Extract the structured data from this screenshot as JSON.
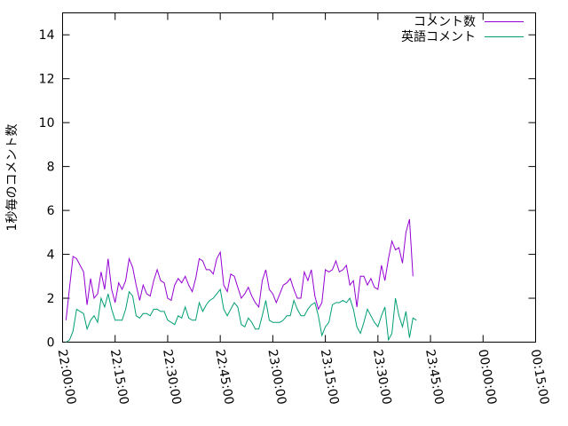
{
  "chart_data": {
    "type": "line",
    "title": "",
    "xlabel": "",
    "ylabel": "1秒毎のコメント数",
    "xlim": [
      "22:00:00",
      "00:15:00"
    ],
    "ylim": [
      0,
      15
    ],
    "yticks": [
      0,
      2,
      4,
      6,
      8,
      10,
      12,
      14
    ],
    "xticks": [
      "22:00:00",
      "22:15:00",
      "22:30:00",
      "22:45:00",
      "23:00:00",
      "23:15:00",
      "23:30:00",
      "23:45:00",
      "00:00:00",
      "00:15:00"
    ],
    "grid": false,
    "legend": "top-right",
    "sample_interval": "1 minute",
    "series": [
      {
        "name": "コメント数",
        "color": "#9400d3",
        "start": "22:00:00",
        "values": [
          1.0,
          2.5,
          3.9,
          3.8,
          3.5,
          3.2,
          1.7,
          2.9,
          2.0,
          2.2,
          3.2,
          2.4,
          3.8,
          2.4,
          1.8,
          2.7,
          2.4,
          2.8,
          3.8,
          3.4,
          2.6,
          1.9,
          2.6,
          2.2,
          2.1,
          2.8,
          3.3,
          2.8,
          2.7,
          2.0,
          1.9,
          2.6,
          2.9,
          2.7,
          3.0,
          2.6,
          2.3,
          2.9,
          3.8,
          3.7,
          3.3,
          3.3,
          3.1,
          3.8,
          4.1,
          2.6,
          2.3,
          3.1,
          3.0,
          2.5,
          2.0,
          2.2,
          2.5,
          2.1,
          1.8,
          1.6,
          2.8,
          3.3,
          2.4,
          2.2,
          1.8,
          2.2,
          2.6,
          2.7,
          2.9,
          2.4,
          2.0,
          2.0,
          3.2,
          2.8,
          3.3,
          2.1,
          1.5,
          1.8,
          3.3,
          3.2,
          3.3,
          3.7,
          3.2,
          3.3,
          3.5,
          2.6,
          2.8,
          1.6,
          3.0,
          3.0,
          2.6,
          2.9,
          2.5,
          2.4,
          3.5,
          2.8,
          3.8,
          4.6,
          4.2,
          4.3,
          3.6,
          5.0,
          5.6,
          3.0
        ]
      },
      {
        "name": "英語コメント",
        "color": "#009e73",
        "start": "22:00:00",
        "values": [
          0.0,
          0.1,
          0.5,
          1.5,
          1.4,
          1.3,
          0.6,
          1.0,
          1.2,
          0.9,
          2.0,
          1.6,
          2.2,
          1.5,
          1.0,
          1.0,
          1.0,
          1.5,
          2.3,
          2.1,
          1.2,
          1.1,
          1.3,
          1.3,
          1.2,
          1.5,
          1.5,
          1.4,
          1.4,
          1.0,
          0.9,
          0.8,
          1.2,
          1.1,
          1.6,
          1.1,
          1.0,
          1.0,
          1.8,
          1.4,
          1.7,
          1.9,
          2.0,
          2.2,
          2.4,
          1.5,
          1.2,
          1.5,
          1.8,
          1.6,
          0.8,
          0.7,
          1.1,
          0.9,
          0.6,
          0.6,
          1.2,
          1.9,
          1.0,
          0.9,
          0.9,
          0.9,
          1.0,
          1.2,
          1.2,
          1.9,
          1.5,
          1.2,
          1.2,
          1.5,
          1.7,
          1.8,
          1.2,
          0.3,
          0.7,
          0.9,
          1.7,
          1.8,
          1.8,
          1.9,
          1.8,
          2.0,
          1.5,
          0.7,
          0.4,
          0.9,
          1.5,
          1.2,
          0.9,
          0.7,
          1.2,
          1.6,
          0.1,
          0.4,
          2.0,
          1.2,
          0.7,
          1.4,
          0.2,
          1.1,
          1.0
        ]
      }
    ]
  }
}
